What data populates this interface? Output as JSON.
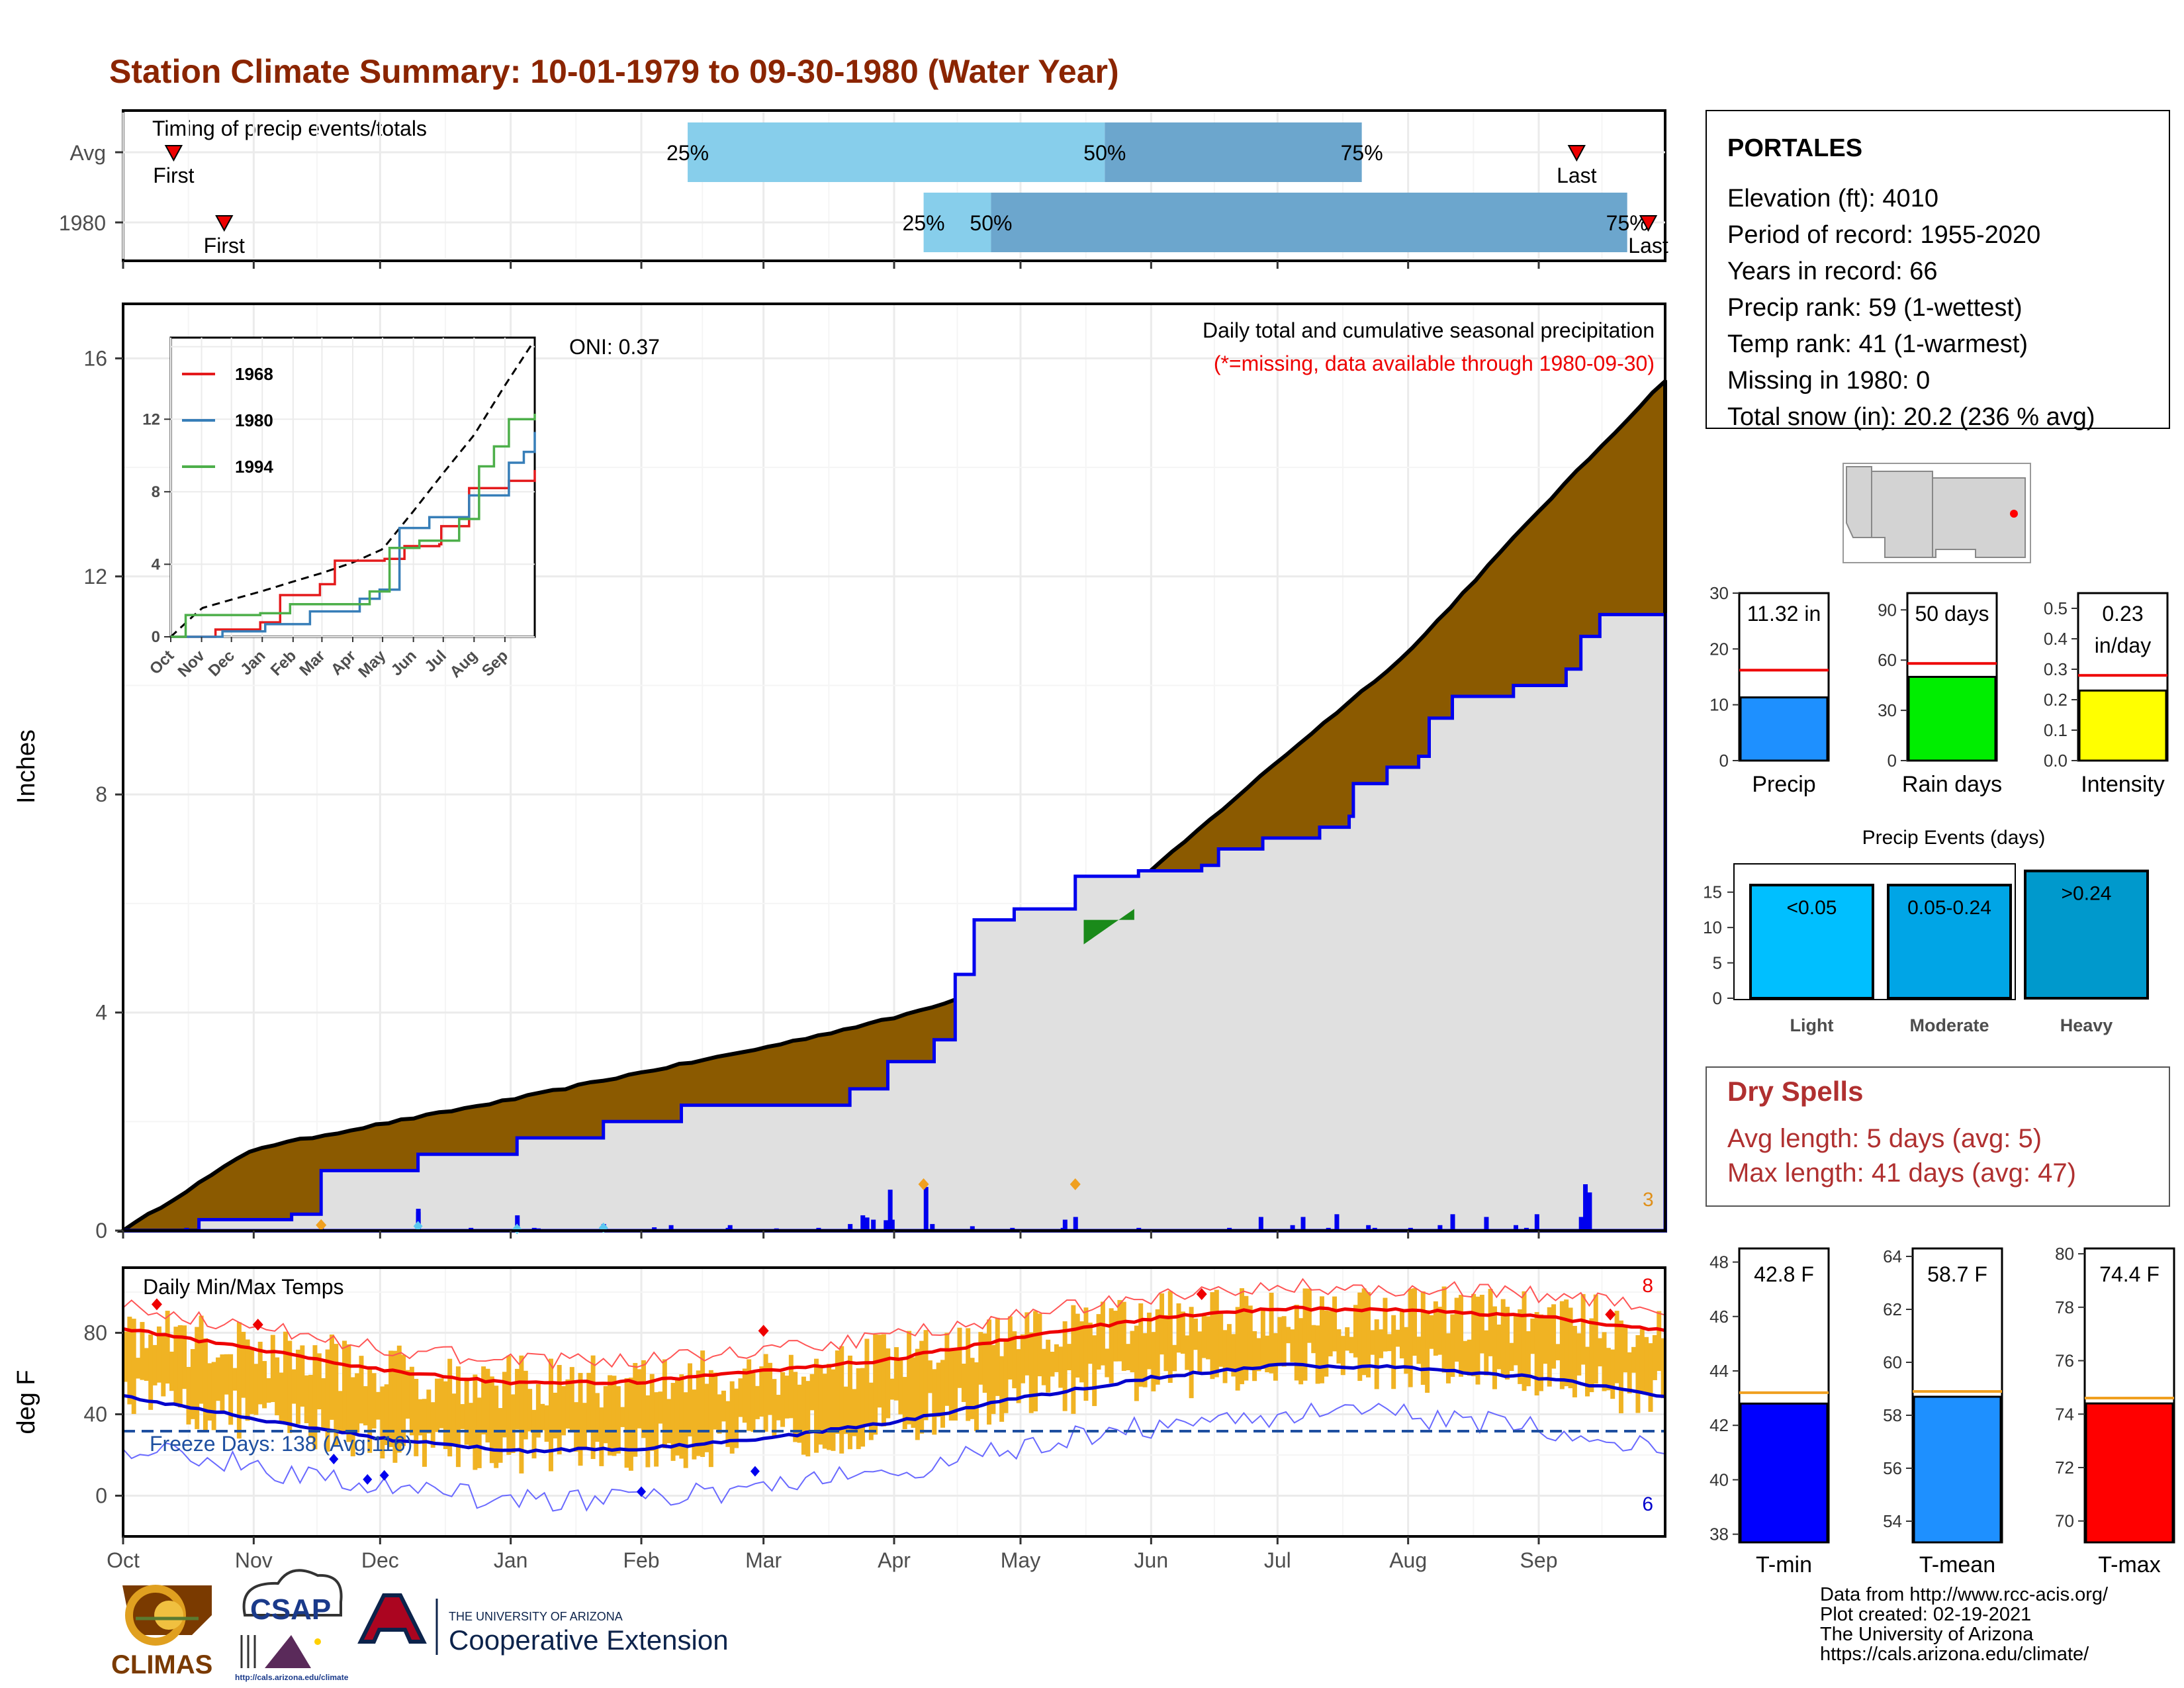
{
  "title": "Station Climate Summary: 10-01-1979 to 09-30-1980 (Water Year)",
  "timing": {
    "label": "Timing of precip events/totals",
    "rows": [
      {
        "name": "Avg",
        "first_label": "First",
        "last_label": "Last",
        "first_day": 12,
        "last_day": 345,
        "p25": 134,
        "p50": 233,
        "p75": 294,
        "p25_label": "25%",
        "p50_label": "50%",
        "p75_label": "75%"
      },
      {
        "name": "1980",
        "first_label": "First",
        "last_label": "Last",
        "first_day": 24,
        "last_day": 362,
        "p25": 190,
        "p50": 206,
        "p75": 357,
        "p25_label": "25%",
        "p50_label": "50%",
        "p75_label": "75%"
      }
    ]
  },
  "precip_panel": {
    "title": "Daily total and cumulative seasonal precipitation",
    "subtitle": "(*=missing, data available through 1980-09-30)",
    "oni": "ONI: 0.37",
    "ylabel": "Inches",
    "yticks": [
      "0",
      "4",
      "8",
      "12",
      "16"
    ],
    "right_marker": "3"
  },
  "inset": {
    "legend": [
      {
        "name": "1968",
        "color": "#e41a1c"
      },
      {
        "name": "1980",
        "color": "#377eb8"
      },
      {
        "name": "1994",
        "color": "#4daf4a"
      }
    ],
    "yticks": [
      "0",
      "4",
      "8",
      "12"
    ],
    "xticks": [
      "Oct",
      "Nov",
      "Dec",
      "Jan",
      "Feb",
      "Mar",
      "Apr",
      "May",
      "Jun",
      "Jul",
      "Aug",
      "Sep"
    ]
  },
  "temp_panel": {
    "title": "Daily Min/Max Temps",
    "ylabel": "deg F",
    "yticks": [
      "0",
      "40",
      "80"
    ],
    "freeze": "Freeze Days: 138 (Avg:116)",
    "hi_count": "8",
    "lo_count": "6"
  },
  "months": [
    "Oct",
    "Nov",
    "Dec",
    "Jan",
    "Feb",
    "Mar",
    "Apr",
    "May",
    "Jun",
    "Jul",
    "Aug",
    "Sep"
  ],
  "station": {
    "name": "PORTALES",
    "lines": [
      "Elevation (ft): 4010",
      "Period of record: 1955-2020",
      "Years in record: 66",
      "Precip rank: 59 (1-wettest)",
      "Temp rank: 41 (1-warmest)",
      "Missing in 1980: 0",
      "Total snow (in): 20.2 (236 % avg)"
    ]
  },
  "summary_bars": [
    {
      "label": "Precip",
      "value": 11.32,
      "display": "11.32 in",
      "avg": 16.2,
      "max": 30,
      "ticks": [
        "0",
        "10",
        "20",
        "30"
      ],
      "color": "#1e90ff"
    },
    {
      "label": "Rain days",
      "value": 50,
      "display": "50 days",
      "avg": 58,
      "max": 100,
      "ticks": [
        "0",
        "30",
        "60",
        "90"
      ],
      "color": "#00ee00"
    },
    {
      "label": "Intensity",
      "value": 0.23,
      "display": "0.23 in/day",
      "avg": 0.28,
      "max": 0.55,
      "ticks": [
        "0.0",
        "0.1",
        "0.2",
        "0.3",
        "0.4",
        "0.5"
      ],
      "color": "#ffff00"
    }
  ],
  "events": {
    "title": "Precip Events (days)",
    "yticks": [
      "0",
      "5",
      "10",
      "15"
    ],
    "bars": [
      {
        "label": "Light",
        "cat": "<0.05",
        "value": 16,
        "color": "#00bfff"
      },
      {
        "label": "Moderate",
        "cat": "0.05-0.24",
        "value": 16,
        "color": "#00a5e6"
      },
      {
        "label": "Heavy",
        "cat": ">0.24",
        "value": 18,
        "color": "#0099cc"
      }
    ]
  },
  "dry_spells": {
    "title": "Dry Spells",
    "avg": "Avg length: 5 days (avg: 5)",
    "max": "Max length: 41 days (avg: 47)"
  },
  "temp_bars": [
    {
      "label": "T-min",
      "value": 42.8,
      "display": "42.8 F",
      "avg": 43.2,
      "min": 37.7,
      "max": 48.5,
      "ticks": [
        "38",
        "40",
        "42",
        "44",
        "46",
        "48"
      ],
      "color": "#0000ff"
    },
    {
      "label": "T-mean",
      "value": 58.7,
      "display": "58.7 F",
      "avg": 58.9,
      "min": 53.2,
      "max": 64.3,
      "ticks": [
        "54",
        "56",
        "58",
        "60",
        "62",
        "64"
      ],
      "color": "#1e90ff"
    },
    {
      "label": "T-max",
      "value": 74.4,
      "display": "74.4 F",
      "avg": 74.6,
      "min": 69.2,
      "max": 80.2,
      "ticks": [
        "70",
        "72",
        "74",
        "76",
        "78",
        "80"
      ],
      "color": "#ff0000"
    }
  ],
  "footer": {
    "lines": [
      "Data from http://www.rcc-acis.org/",
      "Plot created: 02-19-2021",
      "The University of Arizona",
      "https://cals.arizona.edu/climate/"
    ],
    "climas": "CLIMAS",
    "csap": "CSAP",
    "csap_url": "http://cals.arizona.edu/climate",
    "ua_top": "THE UNIVERSITY OF ARIZONA",
    "ua_bottom": "Cooperative Extension"
  },
  "chart_data": [
    {
      "type": "area",
      "title": "Daily total and cumulative seasonal precipitation",
      "ylabel": "Inches",
      "ylim": [
        0,
        17
      ],
      "x": [
        "Oct",
        "Nov",
        "Dec",
        "Jan",
        "Feb",
        "Mar",
        "Apr",
        "May",
        "Jun",
        "Jul",
        "Aug",
        "Sep",
        "end"
      ],
      "series": [
        {
          "name": "",
          "values": [
            0,
            1.5,
            1.95,
            2.4,
            2.9,
            3.35,
            3.9,
            4.6,
            6.6,
            8.6,
            10.6,
            13.2,
            15.6
          ]
        },
        {
          "name": "",
          "values": [
            0,
            0,
            0.2,
            0.7,
            1.4,
            2.0,
            2.3,
            2.8,
            6.4,
            6.6,
            6.7,
            9.8,
            11.3
          ]
        }
      ]
    },
    {
      "type": "line",
      "title": "Daily Min/Max Temps",
      "ylabel": "deg F",
      "ylim": [
        -20,
        112
      ],
      "x": [
        "Oct",
        "Nov",
        "Dec",
        "Jan",
        "Feb",
        "Mar",
        "Apr",
        "May",
        "Jun",
        "Jul",
        "Aug",
        "Sep",
        "end"
      ],
      "series": [
        {
          "name": "",
          "values": [
            82,
            72,
            62,
            55,
            56,
            61,
            67,
            78,
            87,
            92,
            91,
            88,
            81
          ]
        },
        {
          "name": "",
          "values": [
            49,
            38,
            28,
            22,
            23,
            28,
            36,
            48,
            58,
            64,
            63,
            58,
            49
          ]
        }
      ]
    }
  ]
}
